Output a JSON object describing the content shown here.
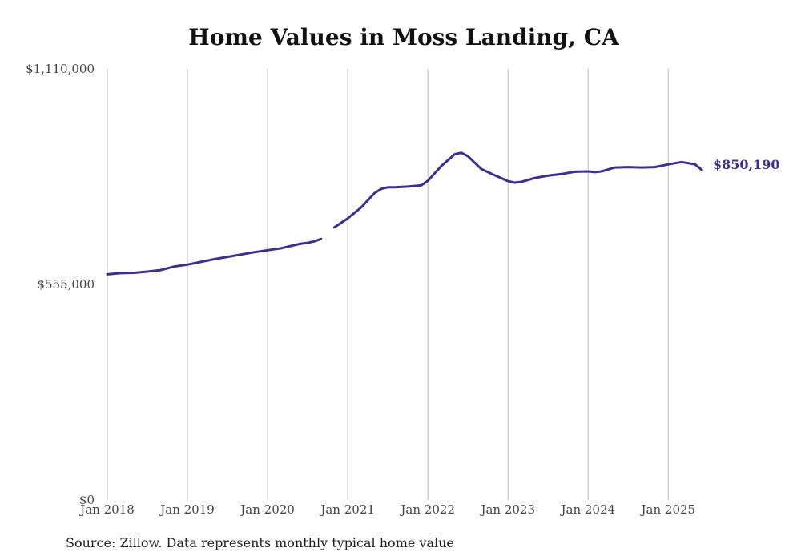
{
  "title": "Home Values in Moss Landing, CA",
  "source": "Source: Zillow. Data represents monthly typical home value",
  "colors": {
    "line": "#3d2f8f",
    "grid": "#bbbbbb",
    "text": "#444444"
  },
  "chart_data": {
    "type": "line",
    "title": "Home Values in Moss Landing, CA",
    "xlabel": "",
    "ylabel": "",
    "ylim": [
      0,
      1110000
    ],
    "y_ticks": [
      0,
      555000,
      1110000
    ],
    "y_tick_labels": [
      "$0",
      "$555,000",
      "$1,110,000"
    ],
    "x_ticks": [
      "2018-01",
      "2019-01",
      "2020-01",
      "2021-01",
      "2022-01",
      "2023-01",
      "2024-01",
      "2025-01"
    ],
    "x_tick_labels": [
      "Jan 2018",
      "Jan 2019",
      "Jan 2020",
      "Jan 2021",
      "Jan 2022",
      "Jan 2023",
      "Jan 2024",
      "Jan 2025"
    ],
    "grid": "vertical",
    "end_label": "$850,190",
    "series": [
      {
        "segments": [
          [
            [
              "2018-01",
              581000
            ],
            [
              "2018-03",
              584000
            ],
            [
              "2018-05",
              585000
            ],
            [
              "2018-07",
              588000
            ],
            [
              "2018-09",
              592000
            ],
            [
              "2018-11",
              601000
            ],
            [
              "2019-01",
              606000
            ],
            [
              "2019-03",
              613000
            ],
            [
              "2019-05",
              620000
            ],
            [
              "2019-07",
              626000
            ],
            [
              "2019-09",
              632000
            ],
            [
              "2019-11",
              638000
            ],
            [
              "2020-01",
              643000
            ],
            [
              "2020-03",
              648000
            ],
            [
              "2020-05",
              656000
            ],
            [
              "2020-06",
              660000
            ],
            [
              "2020-07",
              662000
            ],
            [
              "2020-08",
              666000
            ],
            [
              "2020-09",
              672000
            ]
          ],
          [
            [
              "2020-11",
              702000
            ],
            [
              "2021-01",
              725000
            ],
            [
              "2021-03",
              753000
            ],
            [
              "2021-05",
              790000
            ],
            [
              "2021-06",
              801000
            ],
            [
              "2021-07",
              805000
            ],
            [
              "2021-08",
              805000
            ],
            [
              "2021-10",
              807000
            ],
            [
              "2021-12",
              810000
            ],
            [
              "2022-01",
              822000
            ],
            [
              "2022-03",
              860000
            ],
            [
              "2022-05",
              890000
            ],
            [
              "2022-06",
              894000
            ],
            [
              "2022-07",
              885000
            ],
            [
              "2022-09",
              852000
            ],
            [
              "2022-11",
              836000
            ],
            [
              "2023-01",
              821000
            ],
            [
              "2023-02",
              817000
            ],
            [
              "2023-03",
              819000
            ],
            [
              "2023-05",
              829000
            ],
            [
              "2023-07",
              835000
            ],
            [
              "2023-09",
              839000
            ],
            [
              "2023-11",
              845000
            ],
            [
              "2024-01",
              846000
            ],
            [
              "2024-02",
              844000
            ],
            [
              "2024-03",
              846000
            ],
            [
              "2024-05",
              856000
            ],
            [
              "2024-07",
              857000
            ],
            [
              "2024-09",
              856000
            ],
            [
              "2024-11",
              857000
            ],
            [
              "2025-01",
              864000
            ],
            [
              "2025-03",
              870000
            ],
            [
              "2025-05",
              864000
            ],
            [
              "2025-06",
              850190
            ]
          ]
        ]
      }
    ]
  }
}
